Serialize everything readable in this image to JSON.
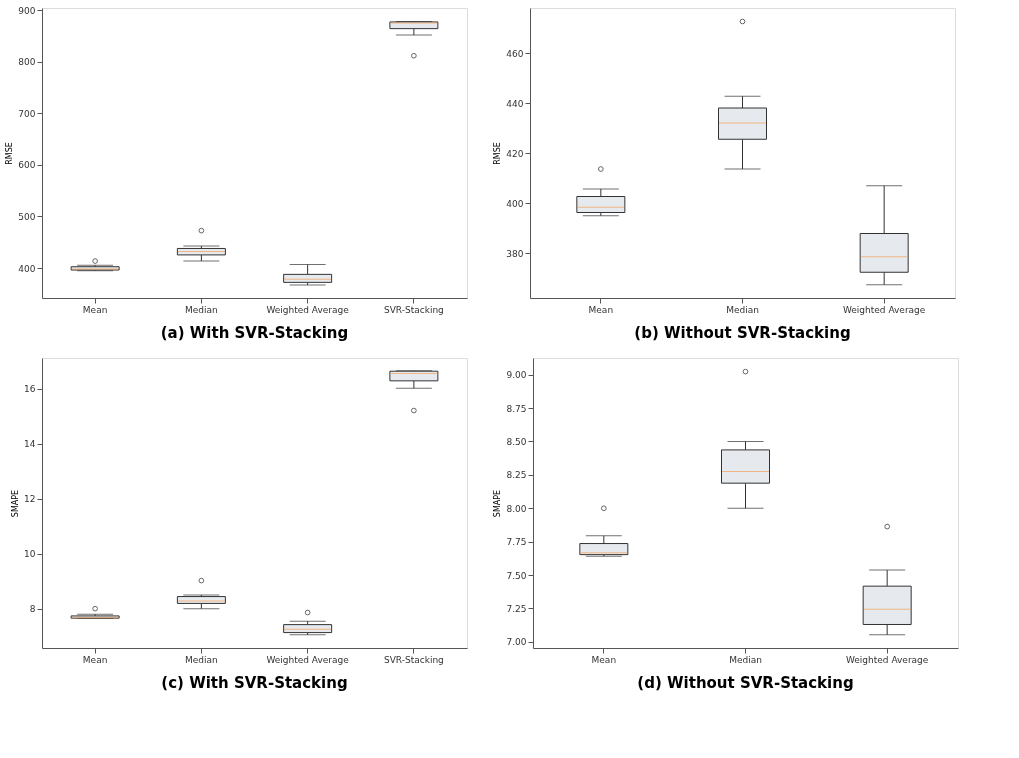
{
  "chart_data": [
    {
      "type": "box",
      "title": "(a) With SVR-Stacking",
      "ylabel": "RMSE",
      "categories": [
        "Mean",
        "Median",
        "Weighted Average",
        "SVR-Stacking"
      ],
      "ylim": [
        342,
        904
      ],
      "yticks": [
        400,
        500,
        600,
        700,
        800,
        900
      ],
      "grid": false,
      "boxes": [
        {
          "low": 394.9,
          "q1": 396.2,
          "median": 398.3,
          "q3": 402.6,
          "high": 405.6,
          "outliers": [
            413.6
          ]
        },
        {
          "low": 413.6,
          "q1": 425.5,
          "median": 432.0,
          "q3": 438.0,
          "high": 442.7,
          "outliers": [
            472.6
          ]
        },
        {
          "low": 367.3,
          "q1": 372.3,
          "median": 378.5,
          "q3": 387.8,
          "high": 406.9
        },
        {
          "low": 851.5,
          "q1": 864,
          "median": 875,
          "q3": 877,
          "high": 878,
          "outliers": [
            811.5
          ]
        }
      ]
    },
    {
      "type": "box",
      "title": "(b) Without SVR-Stacking",
      "ylabel": "RMSE",
      "categories": [
        "Mean",
        "Median",
        "Weighted Average"
      ],
      "ylim": [
        362,
        478
      ],
      "yticks": [
        380,
        400,
        420,
        440,
        460
      ],
      "grid": false,
      "boxes": [
        {
          "low": 394.9,
          "q1": 396.2,
          "median": 398.3,
          "q3": 402.6,
          "high": 405.6,
          "outliers": [
            413.6
          ]
        },
        {
          "low": 413.6,
          "q1": 425.5,
          "median": 432.0,
          "q3": 438.0,
          "high": 442.7,
          "outliers": [
            472.6
          ]
        },
        {
          "low": 367.3,
          "q1": 372.3,
          "median": 378.5,
          "q3": 387.8,
          "high": 406.9
        }
      ]
    },
    {
      "type": "box",
      "title": "(c) With SVR-Stacking",
      "ylabel": "SMAPE",
      "categories": [
        "Mean",
        "Median",
        "Weighted Average",
        "SVR-Stacking"
      ],
      "ylim": [
        6.57,
        17.11
      ],
      "yticks": [
        8,
        10,
        12,
        14,
        16
      ],
      "grid": false,
      "boxes": [
        {
          "low": 7.641,
          "q1": 7.653,
          "median": 7.667,
          "q3": 7.736,
          "high": 7.794,
          "outliers": [
            8.0
          ]
        },
        {
          "low": 8.0,
          "q1": 8.19,
          "median": 8.28,
          "q3": 8.44,
          "high": 8.5,
          "outliers": [
            9.02
          ]
        },
        {
          "low": 7.05,
          "q1": 7.13,
          "median": 7.25,
          "q3": 7.42,
          "high": 7.54,
          "outliers": [
            7.86
          ]
        },
        {
          "low": 16.01,
          "q1": 16.28,
          "median": 16.55,
          "q3": 16.63,
          "high": 16.65,
          "outliers": [
            15.2
          ]
        }
      ]
    },
    {
      "type": "box",
      "title": "(d) Without SVR-Stacking",
      "ylabel": "SMAPE",
      "categories": [
        "Mean",
        "Median",
        "Weighted Average"
      ],
      "ylim": [
        6.954,
        9.125
      ],
      "yticks": [
        {
          "value": 7.0,
          "label": "7.00"
        },
        {
          "value": 7.25,
          "label": "7.25"
        },
        {
          "value": 7.5,
          "label": "7.50"
        },
        {
          "value": 7.75,
          "label": "7.75"
        },
        {
          "value": 8.0,
          "label": "8.00"
        },
        {
          "value": 8.25,
          "label": "8.25"
        },
        {
          "value": 8.5,
          "label": "8.50"
        },
        {
          "value": 8.75,
          "label": "8.75"
        },
        {
          "value": 9.0,
          "label": "9.00"
        }
      ],
      "grid": false,
      "boxes": [
        {
          "low": 7.641,
          "q1": 7.653,
          "median": 7.667,
          "q3": 7.736,
          "high": 7.794,
          "outliers": [
            8.0
          ]
        },
        {
          "low": 8.0,
          "q1": 8.188,
          "median": 8.275,
          "q3": 8.437,
          "high": 8.5,
          "outliers": [
            9.023
          ]
        },
        {
          "low": 7.053,
          "q1": 7.13,
          "median": 7.245,
          "q3": 7.417,
          "high": 7.537,
          "outliers": [
            7.863
          ]
        }
      ]
    }
  ]
}
